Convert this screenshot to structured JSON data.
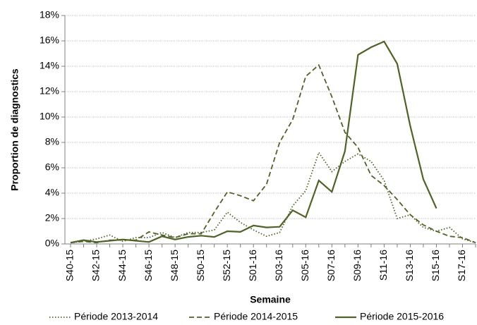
{
  "chart_data": {
    "type": "line",
    "x_label": "Semaine",
    "y_label": "Proportion de diagnostics",
    "categories": [
      "S40-15",
      null,
      "S42-15",
      null,
      "S44-15",
      null,
      "S46-15",
      null,
      "S48-15",
      null,
      "S50-15",
      null,
      "S52-15",
      null,
      "S01-16",
      null,
      "S03-16",
      null,
      "S05-16",
      null,
      "S07-16",
      null,
      "S09-16",
      null,
      "S11-16",
      null,
      "S13-16",
      null,
      "S15-16",
      null,
      "S17-16",
      null
    ],
    "series": [
      {
        "name": "Période 2013-2014",
        "color": "#4f6228",
        "style": "dotted",
        "values": [
          0.1,
          0.2,
          0.4,
          0.7,
          0.2,
          0.5,
          0.5,
          0.9,
          0.5,
          0.9,
          0.9,
          1.1,
          2.5,
          1.7,
          1.1,
          0.6,
          0.9,
          3.0,
          4.2,
          7.2,
          5.7,
          6.5,
          7.1,
          6.5,
          5.0,
          2.0,
          2.3,
          1.3,
          1.0,
          1.3,
          0.4,
          0.1
        ]
      },
      {
        "name": "Période 2014-2015",
        "color": "#4f6228",
        "style": "dashed",
        "values": [
          0.1,
          0.2,
          0.1,
          0.3,
          0.3,
          0.3,
          0.95,
          0.7,
          0.5,
          0.8,
          0.8,
          2.5,
          4.1,
          3.8,
          3.4,
          4.7,
          8.0,
          9.8,
          13.2,
          14.1,
          11.6,
          8.8,
          7.6,
          5.4,
          4.6,
          3.5,
          2.3,
          1.5,
          1.0,
          0.6,
          0.5,
          0.1
        ]
      },
      {
        "name": "Période 2015-2016",
        "color": "#4f6228",
        "style": "solid",
        "values": [
          0.1,
          0.3,
          0.15,
          0.25,
          0.35,
          0.25,
          0.15,
          0.6,
          0.35,
          0.55,
          0.65,
          0.55,
          1.0,
          0.95,
          1.45,
          1.3,
          1.35,
          2.65,
          2.1,
          5.0,
          4.1,
          7.3,
          14.9,
          15.5,
          15.95,
          14.2,
          9.3,
          5.1,
          2.8,
          null,
          null,
          null
        ]
      }
    ],
    "ylim": [
      0,
      18
    ],
    "yticks": [
      {
        "value": 0,
        "label": "0%"
      },
      {
        "value": 2,
        "label": "2%"
      },
      {
        "value": 4,
        "label": "4%"
      },
      {
        "value": 6,
        "label": "6%"
      },
      {
        "value": 8,
        "label": "8%"
      },
      {
        "value": 10,
        "label": "10%"
      },
      {
        "value": 12,
        "label": "12%"
      },
      {
        "value": 14,
        "label": "14%"
      },
      {
        "value": 16,
        "label": "16%"
      },
      {
        "value": 18,
        "label": "18%"
      }
    ],
    "grid": true,
    "legend": "bottom"
  }
}
